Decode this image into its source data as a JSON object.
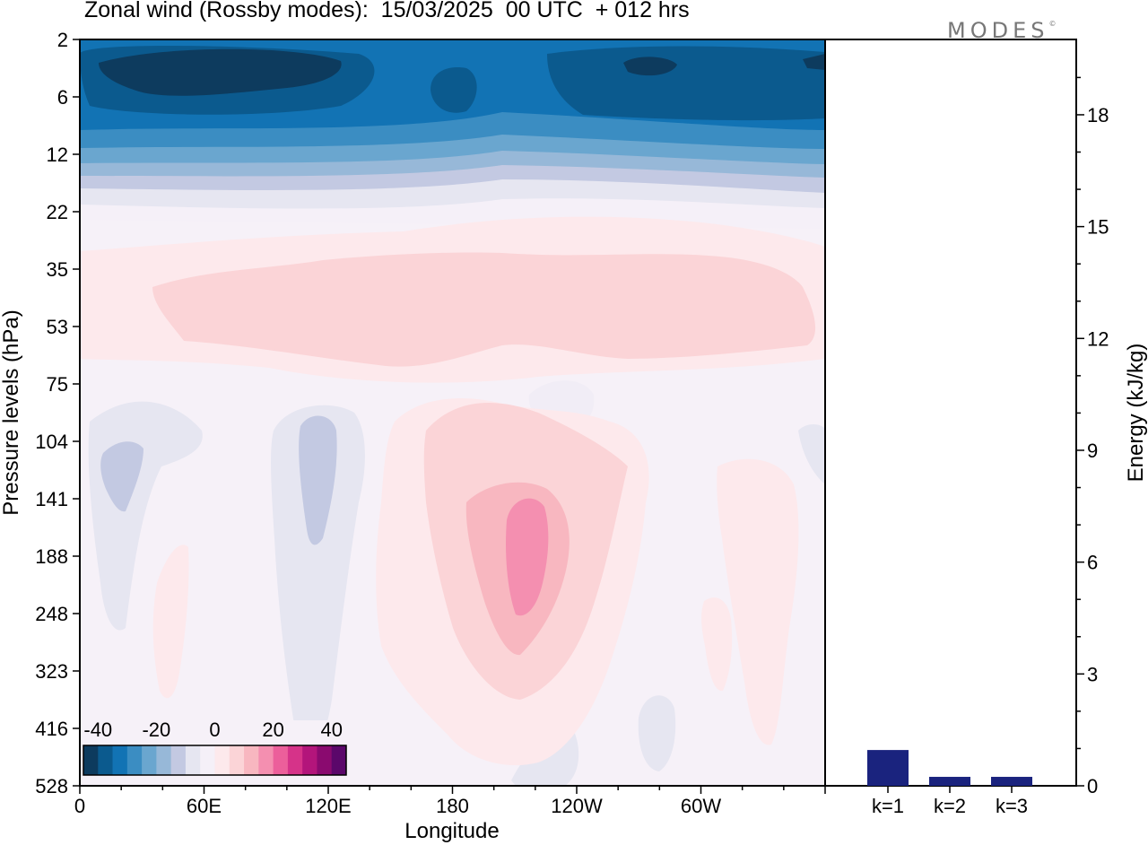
{
  "title": "Zonal wind (Rossby modes):  15/03/2025  00 UTC  + 012 hrs",
  "logo": "MODES",
  "logo_mark": "©",
  "chart_data": [
    {
      "type": "heatmap",
      "xlabel": "Longitude",
      "ylabel": "Pressure levels (hPa)",
      "x_ticks": [
        "0",
        "60E",
        "120E",
        "180",
        "120W",
        "60W"
      ],
      "y_ticks": [
        "2",
        "6",
        "12",
        "22",
        "35",
        "53",
        "75",
        "104",
        "141",
        "188",
        "248",
        "323",
        "416",
        "528"
      ],
      "y_scale": "log",
      "colorbar": {
        "tick_labels": [
          "-40",
          "-20",
          "0",
          "20",
          "40"
        ],
        "range": [
          -45,
          45
        ],
        "colors": [
          "#0d3b5e",
          "#0b5a8e",
          "#1273b4",
          "#3b8dc2",
          "#6aa6cf",
          "#97b8d8",
          "#c3c9e2",
          "#e6e6f1",
          "#f5f0f8",
          "#fde9ec",
          "#fbd4d7",
          "#f8b7c0",
          "#f48fb0",
          "#ec5f9b",
          "#d63389",
          "#b3157b",
          "#8a0a6f",
          "#5b076a"
        ]
      },
      "features": [
        {
          "label": "easterly jet",
          "lon_range": [
            0,
            360
          ],
          "pressure_range": [
            2,
            12
          ],
          "value": -40
        },
        {
          "label": "westerly band",
          "lon_range": [
            20,
            360
          ],
          "pressure_range": [
            35,
            75
          ],
          "value": 5
        },
        {
          "label": "westerly maximum",
          "lon": 200,
          "pressure_range": [
            104,
            323
          ],
          "value": 15
        },
        {
          "label": "easterly pocket",
          "lon": 20,
          "pressure_range": [
            90,
            200
          ],
          "value": -5
        },
        {
          "label": "easterly pocket",
          "lon": 110,
          "pressure_range": [
            90,
            300
          ],
          "value": -5
        }
      ]
    },
    {
      "type": "bar",
      "categories": [
        "k=1",
        "k=2",
        "k=3"
      ],
      "values": [
        0.08,
        0.02,
        0.02
      ],
      "ylabel": "Energy (kJ/kg)",
      "y_ticks": [
        "0",
        "3",
        "6",
        "9",
        "12",
        "15",
        "18"
      ],
      "ylim": [
        0,
        20
      ],
      "bar_color": "#1a237e"
    }
  ]
}
